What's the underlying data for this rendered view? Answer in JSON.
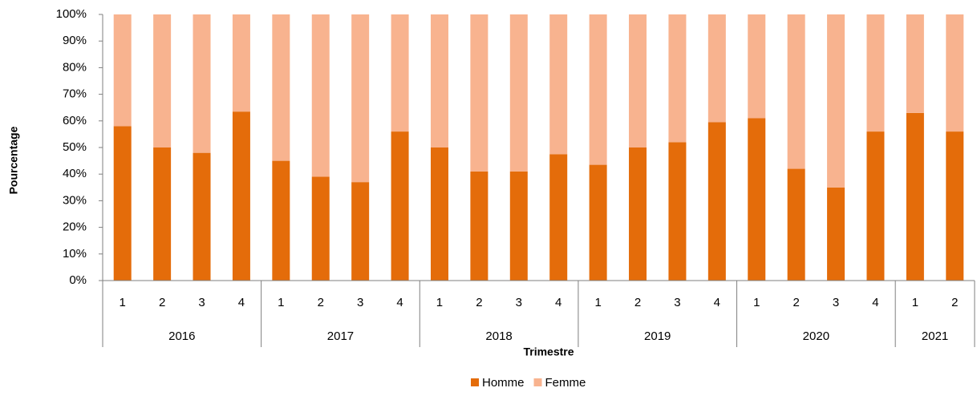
{
  "chart_data": {
    "type": "stacked_bar",
    "x_label": "Trimestre",
    "y_label": "Pourcentage",
    "categories": [
      "1",
      "2",
      "3",
      "4",
      "1",
      "2",
      "3",
      "4",
      "1",
      "2",
      "3",
      "4",
      "1",
      "2",
      "3",
      "4",
      "1",
      "2",
      "3",
      "4",
      "1",
      "2"
    ],
    "groups": [
      {
        "name": "2016",
        "count": 4
      },
      {
        "name": "2017",
        "count": 4
      },
      {
        "name": "2018",
        "count": 4
      },
      {
        "name": "2019",
        "count": 4
      },
      {
        "name": "2020",
        "count": 4
      },
      {
        "name": "2021",
        "count": 2
      }
    ],
    "series": [
      {
        "name": "Homme",
        "color": "#e46c0a",
        "values": [
          58,
          50,
          48,
          63.5,
          45,
          39,
          37,
          56,
          50,
          41,
          41,
          47.5,
          43.5,
          50,
          52,
          59.5,
          61,
          42,
          35,
          56,
          63,
          56
        ]
      },
      {
        "name": "Femme",
        "color": "#f8b38f",
        "values": [
          42,
          50,
          52,
          36.5,
          55,
          61,
          63,
          44,
          50,
          59,
          59,
          52.5,
          56.5,
          50,
          48,
          40.5,
          39,
          58,
          65,
          44,
          37,
          44
        ]
      }
    ],
    "ylim": [
      0,
      100
    ],
    "yticks": [
      {
        "value": 0,
        "label": "0%"
      },
      {
        "value": 10,
        "label": "10%"
      },
      {
        "value": 20,
        "label": "20%"
      },
      {
        "value": 30,
        "label": "30%"
      },
      {
        "value": 40,
        "label": "40%"
      },
      {
        "value": 50,
        "label": "50%"
      },
      {
        "value": 60,
        "label": "60%"
      },
      {
        "value": 70,
        "label": "70%"
      },
      {
        "value": 80,
        "label": "80%"
      },
      {
        "value": 90,
        "label": "90%"
      },
      {
        "value": 100,
        "label": "100%"
      }
    ],
    "legend": "bottom"
  }
}
